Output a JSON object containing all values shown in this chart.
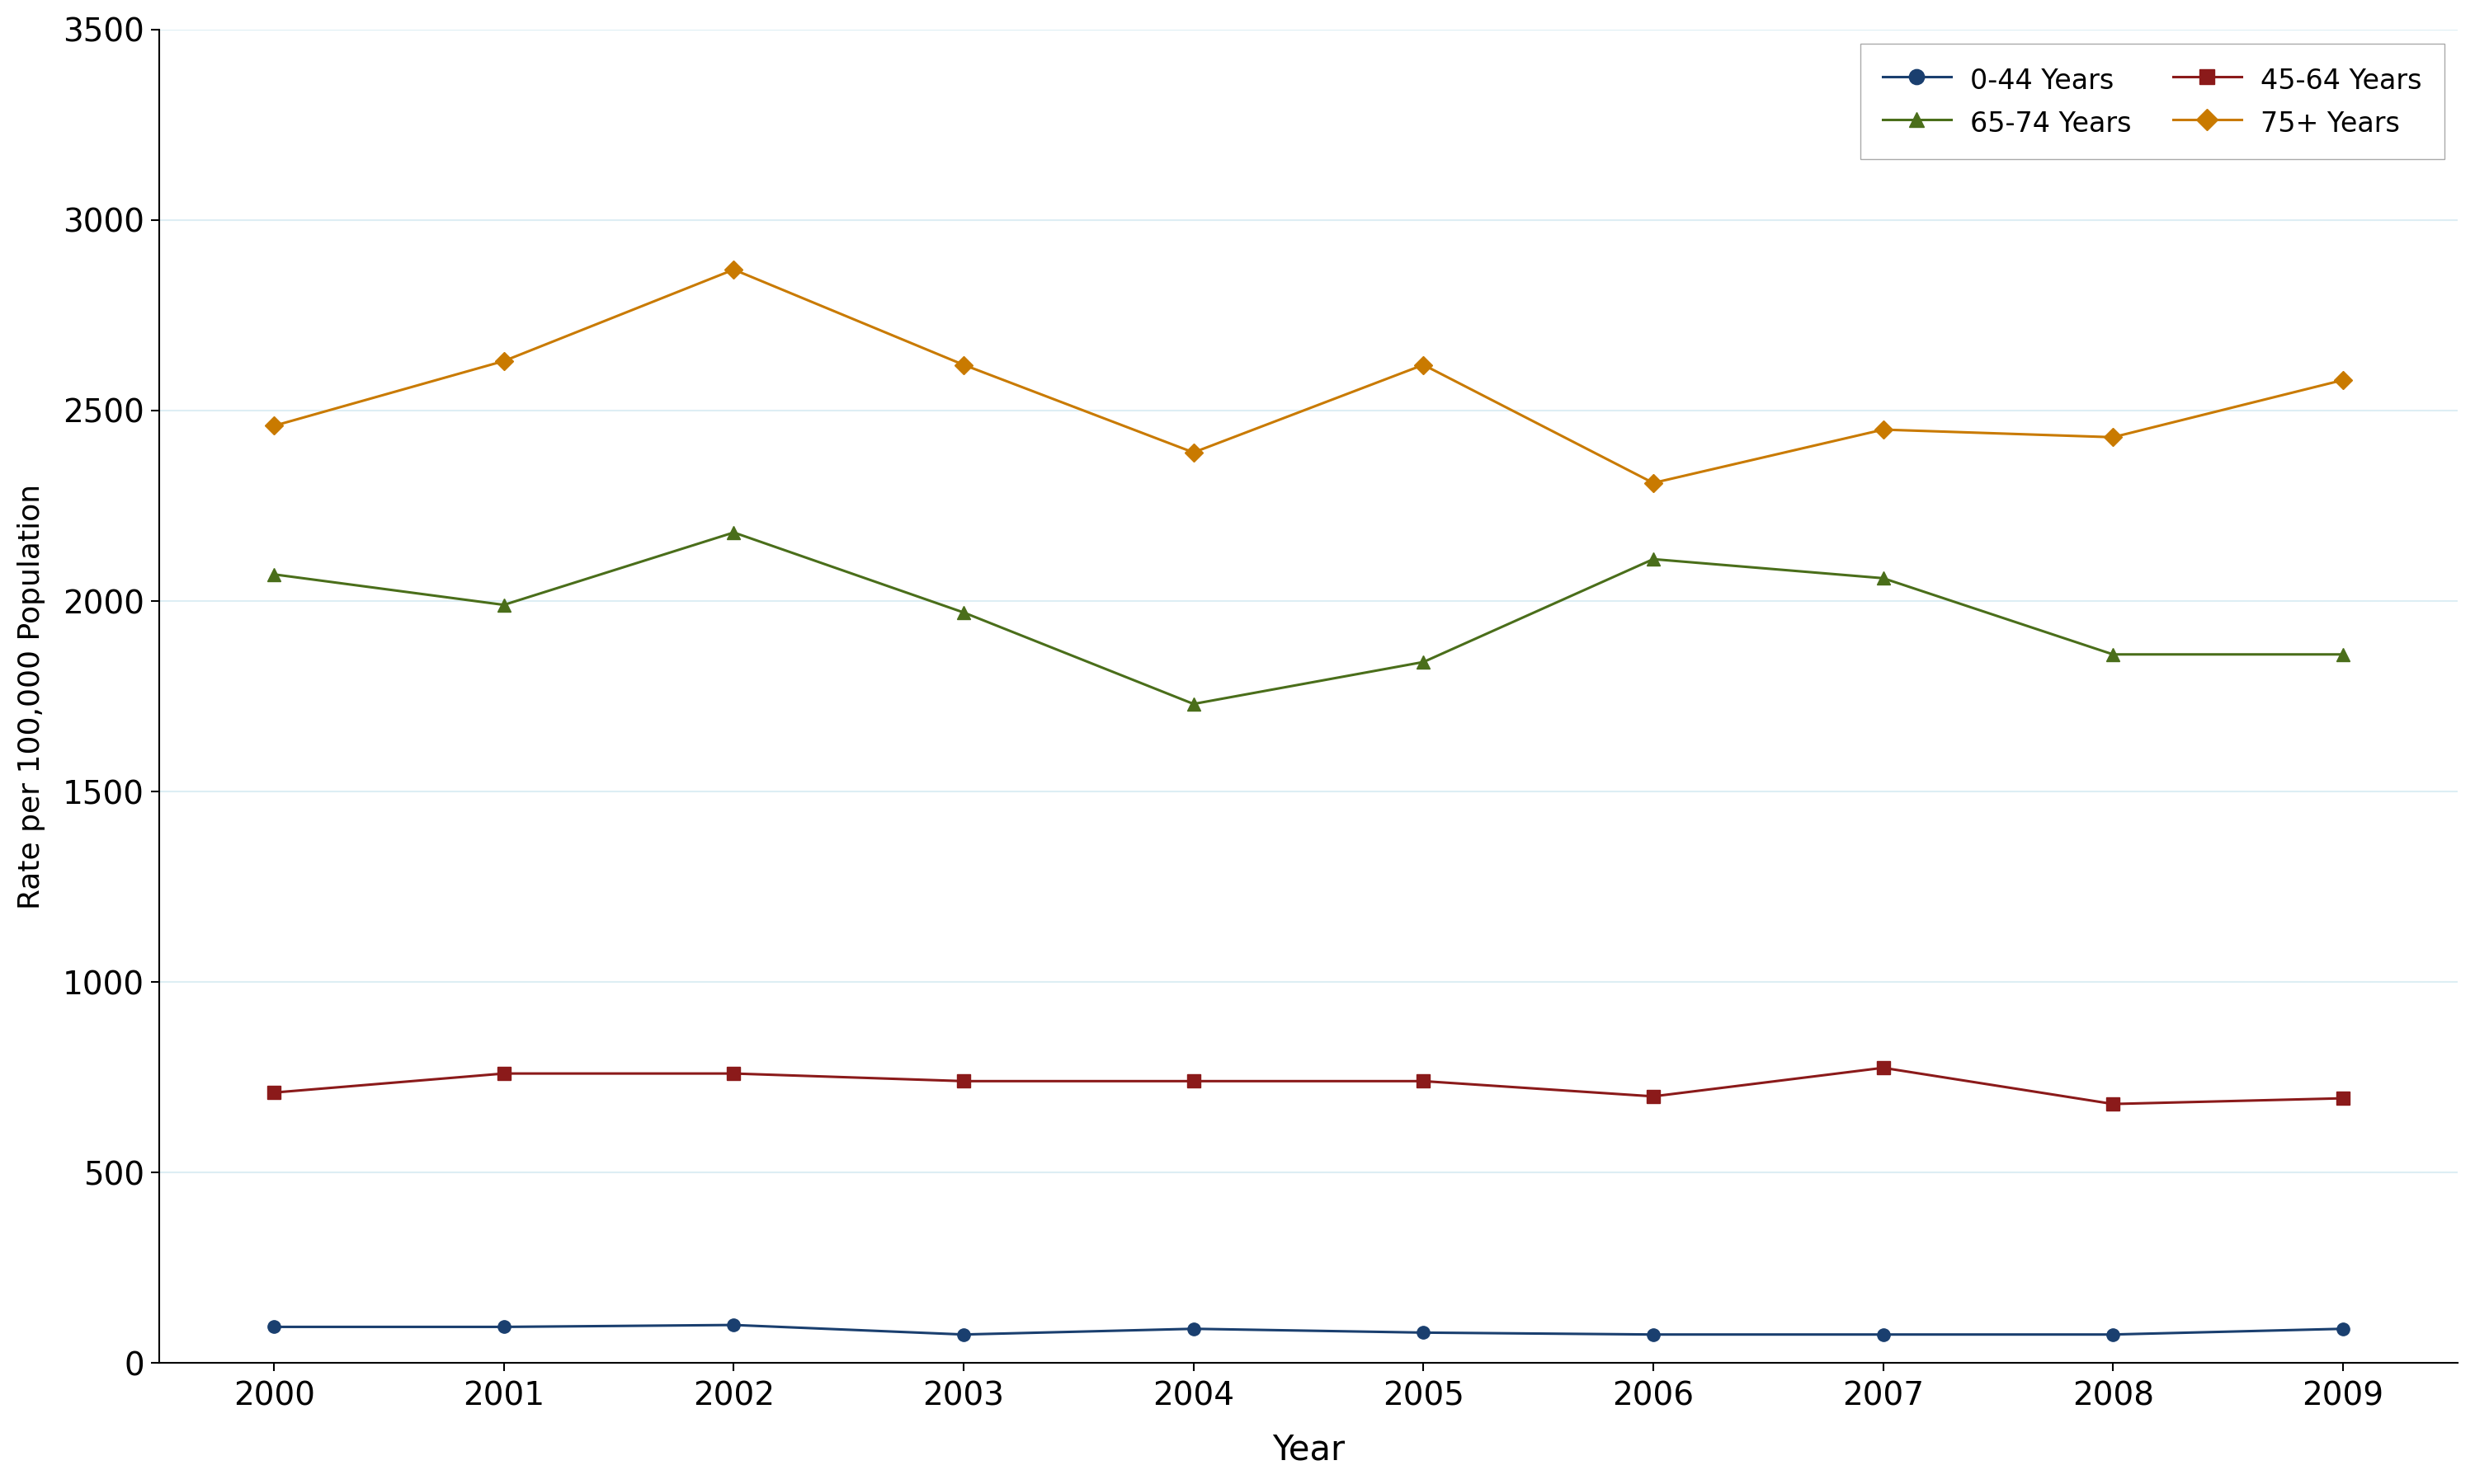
{
  "years": [
    2000,
    2001,
    2002,
    2003,
    2004,
    2005,
    2006,
    2007,
    2008,
    2009
  ],
  "series": {
    "0-44 Years": {
      "values": [
        95,
        95,
        100,
        75,
        90,
        80,
        75,
        75,
        75,
        90
      ],
      "color": "#1a3f6f",
      "marker": "o",
      "linestyle": "-"
    },
    "45-64 Years": {
      "values": [
        710,
        760,
        760,
        740,
        740,
        740,
        700,
        775,
        680,
        695
      ],
      "color": "#8b1a1a",
      "marker": "s",
      "linestyle": "-"
    },
    "65-74 Years": {
      "values": [
        2070,
        1990,
        2180,
        1970,
        1730,
        1840,
        2110,
        2060,
        1860,
        1860
      ],
      "color": "#4a6e1a",
      "marker": "^",
      "linestyle": "-"
    },
    "75+ Years": {
      "values": [
        2460,
        2630,
        2870,
        2620,
        2390,
        2620,
        2310,
        2450,
        2430,
        2580
      ],
      "color": "#c97a00",
      "marker": "D",
      "linestyle": "-"
    }
  },
  "xlabel": "Year",
  "ylabel": "Rate per 100,000 Population",
  "ylim": [
    0,
    3500
  ],
  "yticks": [
    0,
    500,
    1000,
    1500,
    2000,
    2500,
    3000,
    3500
  ],
  "xticks": [
    2000,
    2001,
    2002,
    2003,
    2004,
    2005,
    2006,
    2007,
    2008,
    2009
  ],
  "grid_color": "#ddeef4",
  "background_color": "#ffffff",
  "marker_size": 11,
  "linewidth": 2.2,
  "legend_col1": [
    "0-44 Years",
    "45-64 Years"
  ],
  "legend_col2": [
    "65-74 Years",
    "75+ Years"
  ]
}
